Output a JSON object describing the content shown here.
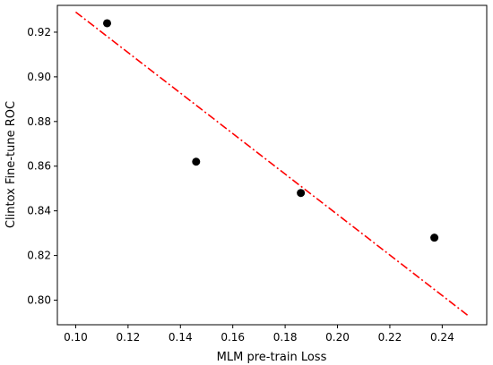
{
  "chart_data": {
    "type": "scatter",
    "title": "",
    "xlabel": "MLM pre-train Loss",
    "ylabel": "Clintox Fine-tune ROC",
    "xlim": [
      0.093,
      0.257
    ],
    "ylim": [
      0.789,
      0.932
    ],
    "x_ticks": [
      "0.10",
      "0.12",
      "0.14",
      "0.16",
      "0.18",
      "0.20",
      "0.22",
      "0.24"
    ],
    "y_ticks": [
      "0.80",
      "0.82",
      "0.84",
      "0.86",
      "0.88",
      "0.90",
      "0.92"
    ],
    "grid": false,
    "series": [
      {
        "points": [
          {
            "x": 0.112,
            "y": 0.924
          },
          {
            "x": 0.146,
            "y": 0.862
          },
          {
            "x": 0.186,
            "y": 0.848
          },
          {
            "x": 0.237,
            "y": 0.828
          }
        ],
        "color": "#000000"
      }
    ],
    "trendline": {
      "style": "dash-dot",
      "color": "#ff0000",
      "start": {
        "x": 0.1,
        "y": 0.929
      },
      "end": {
        "x": 0.25,
        "y": 0.793
      }
    }
  }
}
